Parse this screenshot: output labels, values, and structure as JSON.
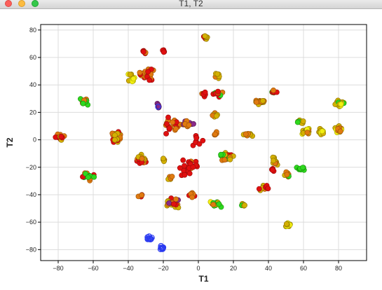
{
  "window": {
    "title": "T1, T2",
    "controls": [
      "close",
      "minimize",
      "zoom"
    ]
  },
  "chart_data": {
    "type": "scatter",
    "title": "",
    "xlabel": "T1",
    "ylabel": "T2",
    "xlim": [
      -90,
      96
    ],
    "ylim": [
      -88,
      84
    ],
    "x_ticks": [
      -80,
      -60,
      -40,
      -20,
      0,
      20,
      40,
      60,
      80
    ],
    "y_ticks": [
      -80,
      -60,
      -40,
      -20,
      0,
      20,
      40,
      60,
      80
    ],
    "grid": true,
    "legend": "none",
    "colors": {
      "red": "#e01010",
      "orange": "#e07a10",
      "gold": "#d4b000",
      "yellow": "#f2ee10",
      "green": "#2ed81e",
      "purple": "#8a2a8a",
      "blue": "#2a3af0"
    },
    "clusters": [
      {
        "x": -79,
        "y": 2,
        "spread": [
          4,
          3
        ],
        "n": 14,
        "colors": [
          "orange",
          "red",
          "gold"
        ]
      },
      {
        "x": -65,
        "y": 28,
        "spread": [
          3,
          4
        ],
        "n": 14,
        "colors": [
          "gold",
          "green",
          "orange"
        ]
      },
      {
        "x": -63,
        "y": -27,
        "spread": [
          5,
          4
        ],
        "n": 20,
        "colors": [
          "red",
          "orange",
          "green"
        ]
      },
      {
        "x": -46,
        "y": 2,
        "spread": [
          4,
          6
        ],
        "n": 24,
        "colors": [
          "orange",
          "gold",
          "red"
        ]
      },
      {
        "x": -38,
        "y": 44,
        "spread": [
          3,
          6
        ],
        "n": 12,
        "colors": [
          "yellow",
          "gold"
        ]
      },
      {
        "x": -31,
        "y": 63,
        "spread": [
          2,
          3
        ],
        "n": 6,
        "colors": [
          "orange",
          "red"
        ]
      },
      {
        "x": -29,
        "y": 48,
        "spread": [
          5,
          6
        ],
        "n": 26,
        "colors": [
          "red",
          "orange"
        ]
      },
      {
        "x": -20,
        "y": 65,
        "spread": [
          2,
          2
        ],
        "n": 4,
        "colors": [
          "red"
        ]
      },
      {
        "x": -33,
        "y": -14,
        "spread": [
          4,
          4
        ],
        "n": 22,
        "colors": [
          "orange",
          "gold",
          "red"
        ]
      },
      {
        "x": -20,
        "y": -15,
        "spread": [
          2,
          3
        ],
        "n": 5,
        "colors": [
          "gold",
          "orange"
        ]
      },
      {
        "x": -33,
        "y": -40,
        "spread": [
          2,
          2
        ],
        "n": 5,
        "colors": [
          "red",
          "orange"
        ]
      },
      {
        "x": -23,
        "y": 25,
        "spread": [
          2,
          3
        ],
        "n": 6,
        "colors": [
          "red",
          "blue",
          "purple"
        ]
      },
      {
        "x": -14,
        "y": 11,
        "spread": [
          8,
          8
        ],
        "n": 22,
        "colors": [
          "red",
          "orange"
        ]
      },
      {
        "x": -6,
        "y": 12,
        "spread": [
          5,
          4
        ],
        "n": 14,
        "colors": [
          "red",
          "orange",
          "purple"
        ]
      },
      {
        "x": 4,
        "y": 74,
        "spread": [
          2,
          3
        ],
        "n": 8,
        "colors": [
          "gold",
          "red"
        ]
      },
      {
        "x": 3,
        "y": 33,
        "spread": [
          2,
          3
        ],
        "n": 8,
        "colors": [
          "red",
          "orange"
        ]
      },
      {
        "x": 12,
        "y": 34,
        "spread": [
          4,
          4
        ],
        "n": 14,
        "colors": [
          "red",
          "orange",
          "green"
        ]
      },
      {
        "x": 10,
        "y": 47,
        "spread": [
          3,
          3
        ],
        "n": 6,
        "colors": [
          "gold",
          "orange"
        ]
      },
      {
        "x": 10,
        "y": 18,
        "spread": [
          3,
          2
        ],
        "n": 8,
        "colors": [
          "orange",
          "gold"
        ]
      },
      {
        "x": 10,
        "y": 4,
        "spread": [
          2,
          2
        ],
        "n": 5,
        "colors": [
          "orange"
        ]
      },
      {
        "x": 16,
        "y": -12,
        "spread": [
          5,
          5
        ],
        "n": 22,
        "colors": [
          "red",
          "orange",
          "green",
          "gold"
        ]
      },
      {
        "x": 28,
        "y": 4,
        "spread": [
          5,
          2
        ],
        "n": 12,
        "colors": [
          "orange",
          "gold"
        ]
      },
      {
        "x": 35,
        "y": 28,
        "spread": [
          4,
          3
        ],
        "n": 18,
        "colors": [
          "gold",
          "orange"
        ]
      },
      {
        "x": 43,
        "y": 35,
        "spread": [
          3,
          2
        ],
        "n": 6,
        "colors": [
          "green",
          "red",
          "orange"
        ]
      },
      {
        "x": 43,
        "y": -15,
        "spread": [
          3,
          4
        ],
        "n": 12,
        "colors": [
          "orange",
          "gold"
        ]
      },
      {
        "x": 42,
        "y": -22,
        "spread": [
          3,
          2
        ],
        "n": 5,
        "colors": [
          "red"
        ]
      },
      {
        "x": 37,
        "y": -35,
        "spread": [
          4,
          3
        ],
        "n": 12,
        "colors": [
          "orange",
          "red",
          "gold"
        ]
      },
      {
        "x": 50,
        "y": -25,
        "spread": [
          3,
          3
        ],
        "n": 10,
        "colors": [
          "gold",
          "green",
          "orange"
        ]
      },
      {
        "x": 58,
        "y": 13,
        "spread": [
          3,
          3
        ],
        "n": 8,
        "colors": [
          "green",
          "gold"
        ]
      },
      {
        "x": 61,
        "y": 6,
        "spread": [
          4,
          4
        ],
        "n": 18,
        "colors": [
          "gold",
          "yellow",
          "green",
          "orange"
        ]
      },
      {
        "x": 70,
        "y": 5,
        "spread": [
          3,
          4
        ],
        "n": 14,
        "colors": [
          "yellow",
          "gold"
        ]
      },
      {
        "x": 80,
        "y": 26,
        "spread": [
          4,
          4
        ],
        "n": 22,
        "colors": [
          "gold",
          "yellow",
          "green"
        ]
      },
      {
        "x": 80,
        "y": 8,
        "spread": [
          4,
          4
        ],
        "n": 16,
        "colors": [
          "yellow",
          "gold",
          "orange"
        ]
      },
      {
        "x": 58,
        "y": -21,
        "spread": [
          4,
          2
        ],
        "n": 8,
        "colors": [
          "green"
        ]
      },
      {
        "x": 51,
        "y": -62,
        "spread": [
          2,
          3
        ],
        "n": 10,
        "colors": [
          "gold",
          "yellow"
        ]
      },
      {
        "x": 10,
        "y": -47,
        "spread": [
          6,
          3
        ],
        "n": 16,
        "colors": [
          "green",
          "yellow",
          "gold",
          "orange"
        ]
      },
      {
        "x": 26,
        "y": -47,
        "spread": [
          2,
          2
        ],
        "n": 5,
        "colors": [
          "green",
          "gold",
          "yellow"
        ]
      },
      {
        "x": -15,
        "y": -46,
        "spread": [
          6,
          5
        ],
        "n": 24,
        "colors": [
          "red",
          "orange",
          "gold",
          "purple"
        ]
      },
      {
        "x": -4,
        "y": -40,
        "spread": [
          3,
          3
        ],
        "n": 8,
        "colors": [
          "red",
          "orange"
        ]
      },
      {
        "x": -16,
        "y": -28,
        "spread": [
          2,
          2
        ],
        "n": 5,
        "colors": [
          "gold",
          "orange"
        ]
      },
      {
        "x": -3,
        "y": -19,
        "spread": [
          3,
          5
        ],
        "n": 10,
        "colors": [
          "red",
          "orange"
        ]
      },
      {
        "x": -28,
        "y": -72,
        "spread": [
          3,
          2
        ],
        "n": 12,
        "colors": [
          "blue"
        ]
      },
      {
        "x": -21,
        "y": -79,
        "spread": [
          2,
          2
        ],
        "n": 10,
        "colors": [
          "blue"
        ]
      },
      {
        "x": -6,
        "y": -20,
        "spread": [
          8,
          10
        ],
        "n": 18,
        "colors": [
          "red"
        ]
      },
      {
        "x": 0,
        "y": 0,
        "spread": [
          6,
          8
        ],
        "n": 8,
        "colors": [
          "red"
        ]
      }
    ]
  }
}
